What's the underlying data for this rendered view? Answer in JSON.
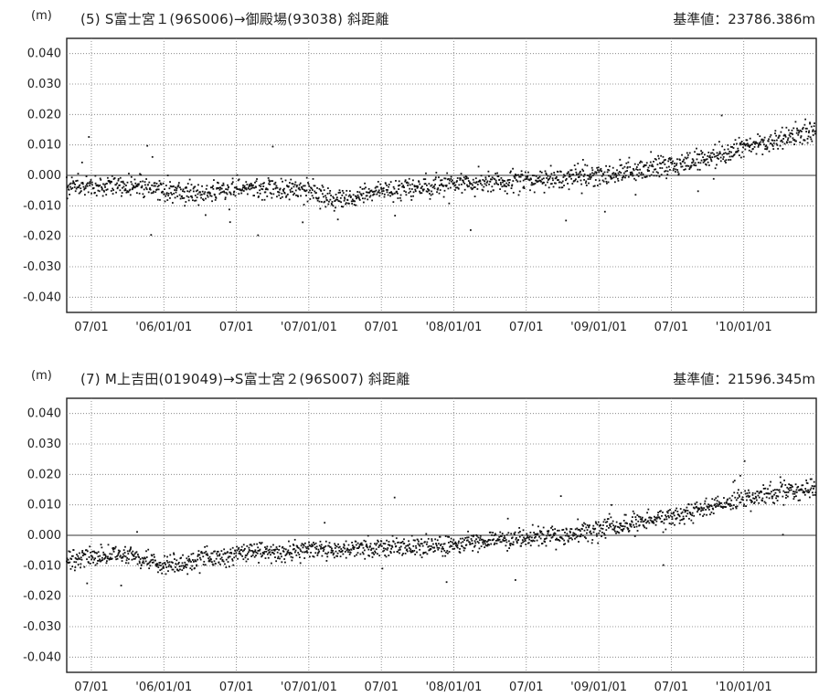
{
  "chart_data": [
    {
      "type": "scatter",
      "unit_label": "(m)",
      "title": "(5)  S富士宮１(96S006)→御殿場(93038)   斜距離",
      "baseline_label": "基準値：23786.386m",
      "ylim": [
        -0.045,
        0.045
      ],
      "yticks": [
        "0.040",
        "0.030",
        "0.020",
        "0.010",
        "0.000",
        "-0.010",
        "-0.020",
        "-0.030",
        "-0.040"
      ],
      "xlim": [
        2005.33,
        2010.5
      ],
      "xticks": [
        "07/01",
        "'06/01/01",
        "07/01",
        "'07/01/01",
        "07/01",
        "'08/01/01",
        "07/01",
        "'09/01/01",
        "07/01",
        "'10/01/01"
      ],
      "grid": true,
      "trend": [
        [
          2005.33,
          -0.004
        ],
        [
          2005.8,
          -0.003
        ],
        [
          2006.2,
          -0.006
        ],
        [
          2006.6,
          -0.004
        ],
        [
          2007.0,
          -0.005
        ],
        [
          2007.2,
          -0.009
        ],
        [
          2007.5,
          -0.005
        ],
        [
          2008.0,
          -0.003
        ],
        [
          2008.5,
          -0.002
        ],
        [
          2009.0,
          0.0
        ],
        [
          2009.2,
          0.001
        ],
        [
          2009.5,
          0.003
        ],
        [
          2010.0,
          0.009
        ],
        [
          2010.5,
          0.015
        ]
      ],
      "noise": 0.0022,
      "points": 1600,
      "seed": 7
    },
    {
      "type": "scatter",
      "unit_label": "(m)",
      "title": "(7)  M上吉田(019049)→S富士宮２(96S007)   斜距離",
      "baseline_label": "基準値：21596.345m",
      "ylim": [
        -0.045,
        0.045
      ],
      "yticks": [
        "0.040",
        "0.030",
        "0.020",
        "0.010",
        "0.000",
        "-0.010",
        "-0.020",
        "-0.030",
        "-0.040"
      ],
      "xlim": [
        2005.33,
        2010.5
      ],
      "xticks": [
        "07/01",
        "'06/01/01",
        "07/01",
        "'07/01/01",
        "07/01",
        "'08/01/01",
        "07/01",
        "'09/01/01",
        "07/01",
        "'10/01/01"
      ],
      "grid": true,
      "trend": [
        [
          2005.33,
          -0.008
        ],
        [
          2005.7,
          -0.006
        ],
        [
          2006.0,
          -0.01
        ],
        [
          2006.5,
          -0.006
        ],
        [
          2007.0,
          -0.005
        ],
        [
          2007.5,
          -0.004
        ],
        [
          2008.0,
          -0.003
        ],
        [
          2008.5,
          -0.001
        ],
        [
          2009.0,
          0.002
        ],
        [
          2009.5,
          0.006
        ],
        [
          2010.0,
          0.012
        ],
        [
          2010.5,
          0.016
        ]
      ],
      "noise": 0.002,
      "points": 1600,
      "seed": 13
    }
  ]
}
